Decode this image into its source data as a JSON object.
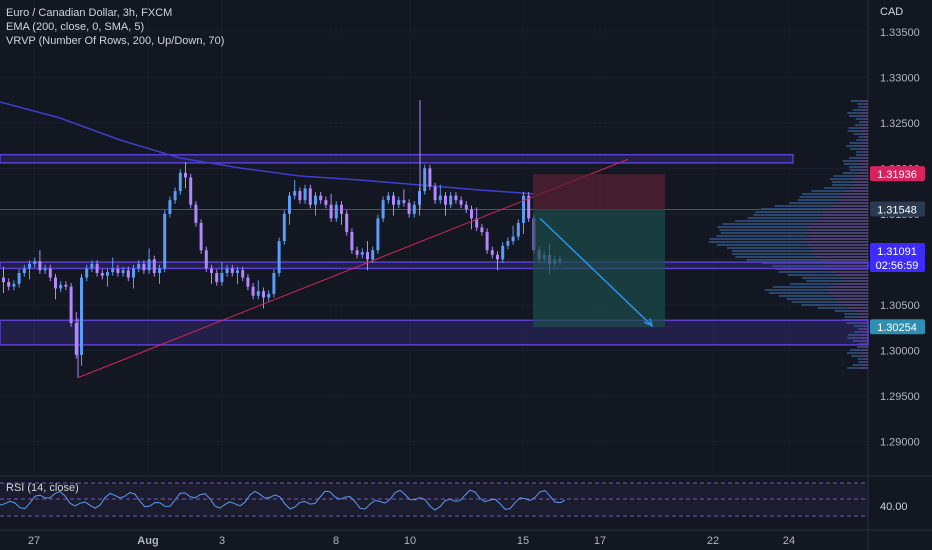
{
  "header": {
    "symbol": "Euro / Canadian Dollar, 3h, FXCM",
    "indicator_ema": "EMA (200, close, 0, SMA, 5)",
    "indicator_vrvp": "VRVP (Number Of Rows, 200, Up/Down, 70)"
  },
  "currency": "CAD",
  "rsi": {
    "label": "RSI (14, close)",
    "value": "40.00"
  },
  "colors": {
    "background": "#131722",
    "up": "#5b9cf6",
    "down": "#b388ff",
    "ema": "#3f3fcf",
    "zone": "#5b3fd1",
    "trendline": "#d6245c",
    "arrow": "#2f8fe8",
    "target": "#1d4f4a",
    "stop": "#5a2231"
  },
  "chart_data": {
    "type": "candlestick",
    "x_ticks": [
      "27",
      "Aug",
      "3",
      "8",
      "10",
      "15",
      "17",
      "22",
      "24"
    ],
    "y_ticks": [
      "1.33500",
      "1.33000",
      "1.32500",
      "1.32000",
      "1.31500",
      "1.31000",
      "1.30500",
      "1.30000",
      "1.29500",
      "1.29000"
    ],
    "ylim": [
      1.2863,
      1.3385
    ],
    "price_labels": [
      {
        "text": "1.31936",
        "value": 1.31936,
        "color": "#d6245c"
      },
      {
        "text": "1.31548",
        "value": 1.31548,
        "color": "#2a3a4f"
      },
      {
        "text": "1.31091",
        "value": 1.31091,
        "color": "#3d2bff"
      },
      {
        "text": "02:56:59",
        "value": 1.30962,
        "color": "#3d2bff"
      },
      {
        "text": "1.30254",
        "value": 1.30254,
        "color": "#2f8fb0"
      }
    ],
    "closes": [
      1.3075,
      1.307,
      1.3073,
      1.3085,
      1.309,
      1.3095,
      1.3098,
      1.3088,
      1.309,
      1.308,
      1.3068,
      1.3072,
      1.307,
      1.303,
      1.2995,
      1.308,
      1.309,
      1.3095,
      1.3085,
      1.3082,
      1.3086,
      1.309,
      1.3085,
      1.3088,
      1.308,
      1.309,
      1.3095,
      1.3088,
      1.31,
      1.3085,
      1.309,
      1.315,
      1.3165,
      1.3175,
      1.3195,
      1.319,
      1.316,
      1.314,
      1.311,
      1.309,
      1.3085,
      1.3075,
      1.3085,
      1.309,
      1.3085,
      1.3088,
      1.308,
      1.307,
      1.306,
      1.3065,
      1.3058,
      1.3062,
      1.3085,
      1.312,
      1.315,
      1.317,
      1.3175,
      1.3165,
      1.3178,
      1.316,
      1.317,
      1.3165,
      1.316,
      1.3145,
      1.316,
      1.315,
      1.313,
      1.311,
      1.3105,
      1.3108,
      1.31,
      1.311,
      1.3145,
      1.3165,
      1.317,
      1.316,
      1.3165,
      1.3162,
      1.315,
      1.316,
      1.3175,
      1.32,
      1.318,
      1.3165,
      1.317,
      1.316,
      1.317,
      1.3165,
      1.316,
      1.3155,
      1.3145,
      1.3135,
      1.313,
      1.311,
      1.3105,
      1.31,
      1.3115,
      1.312,
      1.3125,
      1.314,
      1.317,
      1.3145,
      1.311,
      1.31,
      1.3105,
      1.3095,
      1.31,
      1.3098
    ]
  }
}
